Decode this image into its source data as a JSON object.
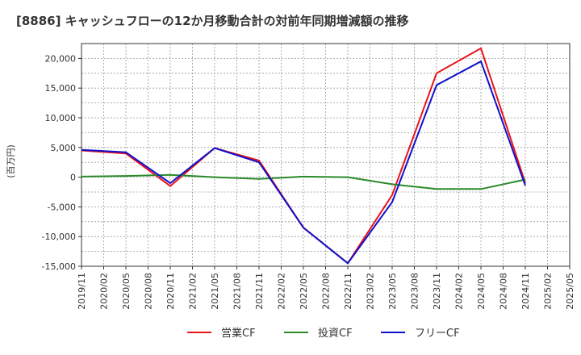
{
  "chart_data": {
    "type": "line",
    "title": "[8886]  キャッシュフローの12か月移動合計の対前年同期増減額の推移",
    "ylabel": "(百万円)",
    "xlabel": "",
    "ylim": [
      -15000,
      22500
    ],
    "yticks": [
      20000,
      15000,
      10000,
      5000,
      0,
      -5000,
      -10000,
      -15000
    ],
    "ytick_labels": [
      "20,000",
      "15,000",
      "10,000",
      "5,000",
      "0",
      "-5,000",
      "-10,000",
      "-15,000"
    ],
    "categories": [
      "2019/11",
      "2020/02",
      "2020/05",
      "2020/08",
      "2020/11",
      "2021/02",
      "2021/05",
      "2021/08",
      "2021/11",
      "2022/02",
      "2022/05",
      "2022/08",
      "2022/11",
      "2023/02",
      "2023/05",
      "2023/08",
      "2023/11",
      "2024/02",
      "2024/05",
      "2024/08",
      "2024/11",
      "2025/02",
      "2025/05"
    ],
    "grid": true,
    "legend_position": "bottom",
    "series": [
      {
        "name": "営業CF",
        "color": "#e8141b",
        "points": [
          [
            0,
            4500
          ],
          [
            2,
            4000
          ],
          [
            4,
            -1500
          ],
          [
            6,
            4900
          ],
          [
            8,
            2800
          ],
          [
            10,
            -8500
          ],
          [
            12,
            -14500
          ],
          [
            14,
            -3000
          ],
          [
            16,
            17500
          ],
          [
            18,
            21700
          ],
          [
            20,
            -1000
          ]
        ]
      },
      {
        "name": "投資CF",
        "color": "#2a8a2a",
        "points": [
          [
            0,
            100
          ],
          [
            2,
            200
          ],
          [
            4,
            400
          ],
          [
            6,
            0
          ],
          [
            8,
            -300
          ],
          [
            10,
            100
          ],
          [
            12,
            0
          ],
          [
            14,
            -1200
          ],
          [
            16,
            -2000
          ],
          [
            18,
            -2000
          ],
          [
            20,
            -400
          ]
        ]
      },
      {
        "name": "フリーCF",
        "color": "#1010cc",
        "points": [
          [
            0,
            4600
          ],
          [
            2,
            4200
          ],
          [
            4,
            -1000
          ],
          [
            6,
            4900
          ],
          [
            8,
            2500
          ],
          [
            10,
            -8500
          ],
          [
            12,
            -14500
          ],
          [
            14,
            -4200
          ],
          [
            16,
            15500
          ],
          [
            18,
            19500
          ],
          [
            20,
            -1400
          ]
        ]
      }
    ]
  }
}
